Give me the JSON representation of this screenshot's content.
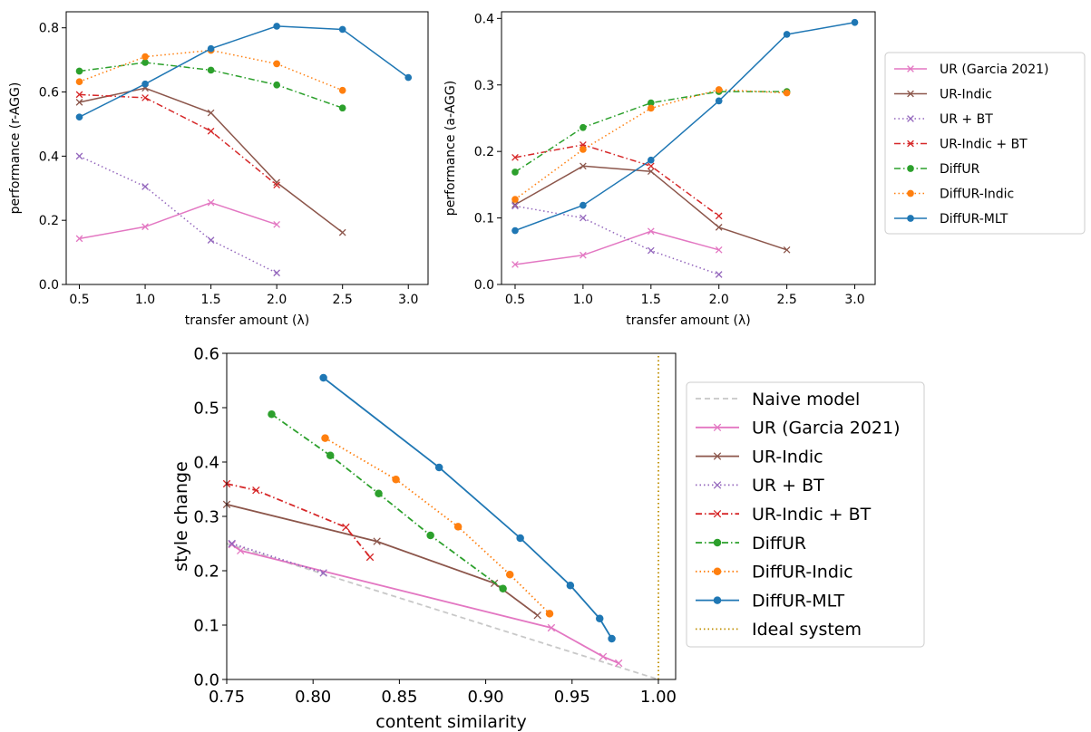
{
  "chart_data": [
    {
      "type": "line",
      "xlabel": "transfer amount (λ)",
      "ylabel": "performance (r-AGG)",
      "xlim": [
        0.4,
        3.15
      ],
      "ylim": [
        0.0,
        0.85
      ],
      "xticks": [
        "0.5",
        "1.0",
        "1.5",
        "2.0",
        "2.5",
        "3.0"
      ],
      "yticks": [
        "0.0",
        "0.2",
        "0.4",
        "0.6",
        "0.8"
      ],
      "grid": false,
      "legend": "none",
      "series": [
        {
          "name": "UR (Garcia 2021)",
          "color": "#e377c2",
          "style": "solid",
          "marker": "x",
          "x": [
            0.5,
            1.0,
            1.5,
            2.0
          ],
          "y": [
            0.143,
            0.18,
            0.255,
            0.187
          ]
        },
        {
          "name": "UR-Indic",
          "color": "#8c564b",
          "style": "solid",
          "marker": "x",
          "x": [
            0.5,
            1.0,
            1.5,
            2.0,
            2.5
          ],
          "y": [
            0.568,
            0.612,
            0.535,
            0.318,
            0.162
          ]
        },
        {
          "name": "UR + BT",
          "color": "#9467bd",
          "style": "dotted",
          "marker": "x",
          "x": [
            0.5,
            1.0,
            1.5,
            2.0
          ],
          "y": [
            0.4,
            0.305,
            0.138,
            0.036
          ]
        },
        {
          "name": "UR-Indic + BT",
          "color": "#d62728",
          "style": "dashdot",
          "marker": "x",
          "x": [
            0.5,
            1.0,
            1.5,
            2.0
          ],
          "y": [
            0.592,
            0.582,
            0.478,
            0.31
          ]
        },
        {
          "name": "DiffUR",
          "color": "#2ca02c",
          "style": "dashdot",
          "marker": "o",
          "x": [
            0.5,
            1.0,
            1.5,
            2.0,
            2.5
          ],
          "y": [
            0.665,
            0.692,
            0.668,
            0.622,
            0.55
          ]
        },
        {
          "name": "DiffUR-Indic",
          "color": "#ff7f0e",
          "style": "dotted",
          "marker": "o",
          "x": [
            0.5,
            1.0,
            1.5,
            2.0,
            2.5
          ],
          "y": [
            0.632,
            0.71,
            0.73,
            0.688,
            0.605
          ]
        },
        {
          "name": "DiffUR-MLT",
          "color": "#1f77b4",
          "style": "solid",
          "marker": "o",
          "x": [
            0.5,
            1.0,
            1.5,
            2.0,
            2.5,
            3.0
          ],
          "y": [
            0.522,
            0.625,
            0.735,
            0.805,
            0.795,
            0.645
          ]
        }
      ]
    },
    {
      "type": "line",
      "xlabel": "transfer amount (λ)",
      "ylabel": "performance (a-AGG)",
      "xlim": [
        0.4,
        3.15
      ],
      "ylim": [
        0.0,
        0.41
      ],
      "xticks": [
        "0.5",
        "1.0",
        "1.5",
        "2.0",
        "2.5",
        "3.0"
      ],
      "yticks": [
        "0.0",
        "0.1",
        "0.2",
        "0.3",
        "0.4"
      ],
      "grid": false,
      "legend": "right",
      "series": [
        {
          "name": "UR (Garcia 2021)",
          "color": "#e377c2",
          "style": "solid",
          "marker": "x",
          "x": [
            0.5,
            1.0,
            1.5,
            2.0
          ],
          "y": [
            0.03,
            0.044,
            0.08,
            0.052
          ]
        },
        {
          "name": "UR-Indic",
          "color": "#8c564b",
          "style": "solid",
          "marker": "x",
          "x": [
            0.5,
            1.0,
            1.5,
            2.0,
            2.5
          ],
          "y": [
            0.12,
            0.178,
            0.17,
            0.086,
            0.052
          ]
        },
        {
          "name": "UR + BT",
          "color": "#9467bd",
          "style": "dotted",
          "marker": "x",
          "x": [
            0.5,
            1.0,
            1.5,
            2.0
          ],
          "y": [
            0.118,
            0.1,
            0.051,
            0.015
          ]
        },
        {
          "name": "UR-Indic + BT",
          "color": "#d62728",
          "style": "dashdot",
          "marker": "x",
          "x": [
            0.5,
            1.0,
            1.5,
            2.0
          ],
          "y": [
            0.191,
            0.21,
            0.178,
            0.103
          ]
        },
        {
          "name": "DiffUR",
          "color": "#2ca02c",
          "style": "dashdot",
          "marker": "o",
          "x": [
            0.5,
            1.0,
            1.5,
            2.0,
            2.5
          ],
          "y": [
            0.169,
            0.236,
            0.273,
            0.29,
            0.29
          ]
        },
        {
          "name": "DiffUR-Indic",
          "color": "#ff7f0e",
          "style": "dotted",
          "marker": "o",
          "x": [
            0.5,
            1.0,
            1.5,
            2.0,
            2.5
          ],
          "y": [
            0.128,
            0.203,
            0.265,
            0.293,
            0.288
          ]
        },
        {
          "name": "DiffUR-MLT",
          "color": "#1f77b4",
          "style": "solid",
          "marker": "o",
          "x": [
            0.5,
            1.0,
            1.5,
            2.0,
            2.5,
            3.0
          ],
          "y": [
            0.081,
            0.119,
            0.187,
            0.276,
            0.376,
            0.394
          ]
        }
      ]
    },
    {
      "type": "line",
      "xlabel": "content similarity",
      "ylabel": "style change",
      "xlim": [
        0.75,
        1.01
      ],
      "ylim": [
        0.0,
        0.6
      ],
      "xticks": [
        "0.75",
        "0.80",
        "0.85",
        "0.90",
        "0.95",
        "1.00"
      ],
      "yticks": [
        "0.0",
        "0.1",
        "0.2",
        "0.3",
        "0.4",
        "0.5",
        "0.6"
      ],
      "grid": false,
      "legend": "right",
      "series": [
        {
          "name": "Naive model",
          "color": "#c8c8c8",
          "style": "dashed",
          "marker": "none",
          "x": [
            0.75,
            1.0
          ],
          "y": [
            0.25,
            0.0
          ]
        },
        {
          "name": "UR (Garcia 2021)",
          "color": "#e377c2",
          "style": "solid",
          "marker": "x",
          "x": [
            0.753,
            0.758,
            0.938,
            0.968,
            0.977
          ],
          "y": [
            0.248,
            0.237,
            0.095,
            0.042,
            0.03
          ]
        },
        {
          "name": "UR-Indic",
          "color": "#8c564b",
          "style": "solid",
          "marker": "x",
          "x": [
            0.75,
            0.837,
            0.905,
            0.93
          ],
          "y": [
            0.322,
            0.254,
            0.177,
            0.118
          ]
        },
        {
          "name": "UR + BT",
          "color": "#9467bd",
          "style": "dotted",
          "marker": "x",
          "x": [
            0.753,
            0.806
          ],
          "y": [
            0.25,
            0.196
          ]
        },
        {
          "name": "UR-Indic + BT",
          "color": "#d62728",
          "style": "dashdot",
          "marker": "x",
          "x": [
            0.75,
            0.767,
            0.819,
            0.833
          ],
          "y": [
            0.36,
            0.348,
            0.28,
            0.225
          ]
        },
        {
          "name": "DiffUR",
          "color": "#2ca02c",
          "style": "dashdot",
          "marker": "o",
          "x": [
            0.776,
            0.81,
            0.838,
            0.868,
            0.91
          ],
          "y": [
            0.488,
            0.412,
            0.342,
            0.265,
            0.167
          ]
        },
        {
          "name": "DiffUR-Indic",
          "color": "#ff7f0e",
          "style": "dotted",
          "marker": "o",
          "x": [
            0.807,
            0.848,
            0.884,
            0.914,
            0.937
          ],
          "y": [
            0.444,
            0.368,
            0.281,
            0.193,
            0.121
          ]
        },
        {
          "name": "DiffUR-MLT",
          "color": "#1f77b4",
          "style": "solid",
          "marker": "o",
          "x": [
            0.806,
            0.873,
            0.92,
            0.949,
            0.966,
            0.973
          ],
          "y": [
            0.555,
            0.39,
            0.26,
            0.173,
            0.112,
            0.075
          ]
        },
        {
          "name": "Ideal system",
          "color": "#bf8f00",
          "style": "dotted",
          "marker": "none",
          "x": [
            1.0,
            1.0
          ],
          "y": [
            0.0,
            0.6
          ]
        }
      ]
    }
  ]
}
